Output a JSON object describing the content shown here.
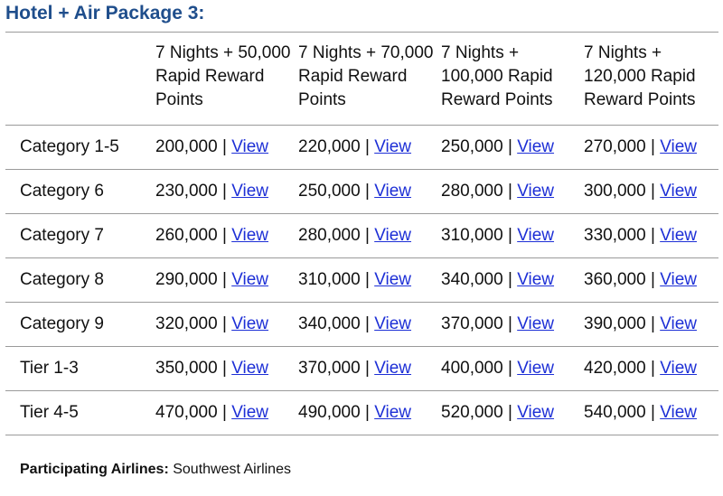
{
  "title": "Hotel + Air Package 3:",
  "table": {
    "columns": [
      "7 Nights + 50,000 Rapid Reward Points",
      "7 Nights + 70,000 Rapid Reward Points",
      "7 Nights + 100,000 Rapid Reward Points",
      "7 Nights + 120,000 Rapid Reward Points"
    ],
    "separator": "|",
    "link_label": "View",
    "rows": [
      {
        "label": "Category 1-5",
        "values": [
          "200,000",
          "220,000",
          "250,000",
          "270,000"
        ]
      },
      {
        "label": "Category 6",
        "values": [
          "230,000",
          "250,000",
          "280,000",
          "300,000"
        ]
      },
      {
        "label": "Category 7",
        "values": [
          "260,000",
          "280,000",
          "310,000",
          "330,000"
        ]
      },
      {
        "label": "Category 8",
        "values": [
          "290,000",
          "310,000",
          "340,000",
          "360,000"
        ]
      },
      {
        "label": "Category 9",
        "values": [
          "320,000",
          "340,000",
          "370,000",
          "390,000"
        ]
      },
      {
        "label": "Tier 1-3",
        "values": [
          "350,000",
          "370,000",
          "400,000",
          "420,000"
        ]
      },
      {
        "label": "Tier 4-5",
        "values": [
          "470,000",
          "490,000",
          "520,000",
          "540,000"
        ]
      }
    ]
  },
  "footer": {
    "label": "Participating Airlines:",
    "value": "Southwest Airlines"
  },
  "colors": {
    "title": "#1f4e8c",
    "link": "#1d2fd6",
    "rule": "#9a9a9a"
  }
}
